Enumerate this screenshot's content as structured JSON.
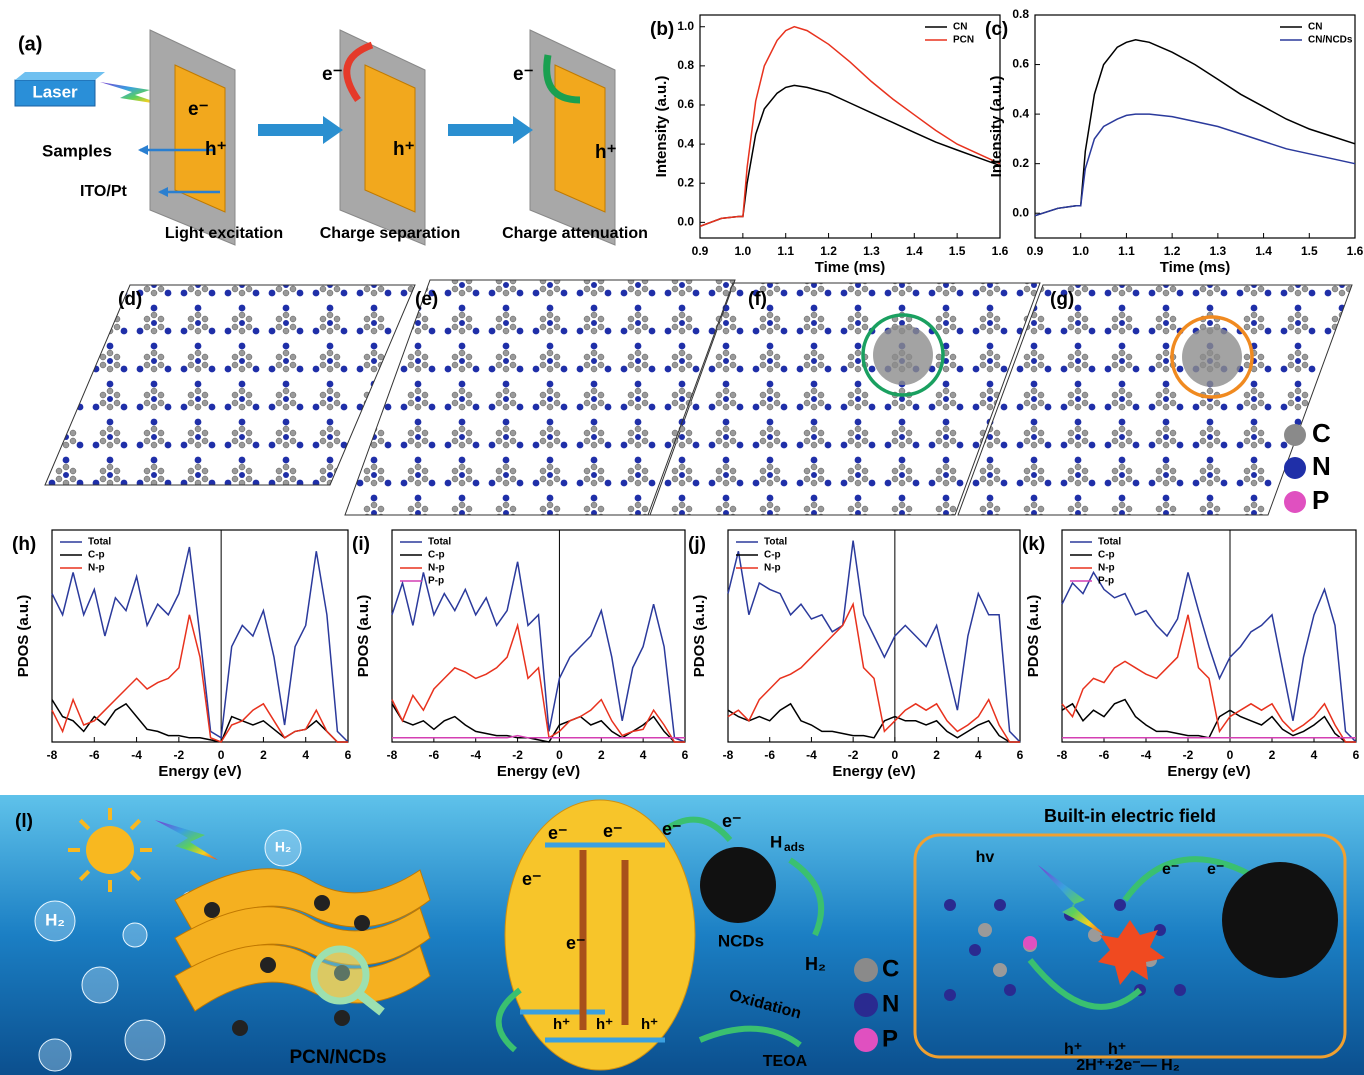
{
  "panel_a": {
    "label": "(a)",
    "laser": "Laser",
    "samples": "Samples",
    "ito": "ITO/Pt",
    "captions": [
      "Light excitation",
      "Charge separation",
      "Charge attenuation"
    ],
    "electrons": [
      "e⁻",
      "e⁻",
      "e⁻"
    ],
    "holes": [
      "h⁺",
      "h⁺",
      "h⁺"
    ]
  },
  "structures": {
    "labels": [
      "(d)",
      "(e)",
      "(f)",
      "(g)"
    ],
    "legend": [
      "C",
      "N",
      "P"
    ]
  },
  "panel_l": {
    "label": "(l)",
    "h2_bubbles": [
      "H₂",
      "H₂"
    ],
    "material": "PCN/NCDs",
    "electrons_top": [
      "e⁻",
      "e⁻",
      "e⁻",
      "e⁻"
    ],
    "electrons_mid": [
      "e⁻",
      "e⁻"
    ],
    "holes": [
      "h⁺",
      "h⁺",
      "h⁺"
    ],
    "ncds": "NCDs",
    "h_ads": "H",
    "h_ads_sub": "ads",
    "h2": "H₂",
    "oxidation": "Oxidation",
    "teoa": "TEOA",
    "legend": [
      "C",
      "N",
      "P"
    ],
    "field_title": "Built-in electric field",
    "hv": "hv",
    "field_electrons": [
      "e⁻",
      "e⁻"
    ],
    "field_holes": [
      "h⁺",
      "h⁺"
    ],
    "reaction": "2H⁺+2e⁻— H₂"
  },
  "chart_data": [
    {
      "type": "line",
      "label": "(b)",
      "xlabel": "Time (ms)",
      "ylabel": "Intensity (a.u.)",
      "legend": "upper right",
      "xlim": [
        0.9,
        1.6
      ],
      "ylim": [
        -0.08,
        1.06
      ],
      "xticks": [
        0.9,
        {
          "value": 1,
          "label": "1.0"
        },
        1.1,
        1.2,
        1.3,
        1.4,
        1.5,
        1.6
      ],
      "yticks": [
        {
          "value": 0,
          "label": "0.0"
        },
        0.2,
        0.4,
        0.6,
        0.8,
        {
          "value": 1,
          "label": "1.0"
        }
      ],
      "x": [
        0.9,
        0.95,
        0.99,
        1.0,
        1.01,
        1.03,
        1.05,
        1.08,
        1.1,
        1.12,
        1.15,
        1.2,
        1.25,
        1.3,
        1.35,
        1.4,
        1.45,
        1.5,
        1.55,
        1.6
      ],
      "series": [
        {
          "name": "CN",
          "color": "#000000",
          "values": [
            -0.02,
            0.02,
            0.03,
            0.03,
            0.2,
            0.45,
            0.58,
            0.66,
            0.69,
            0.7,
            0.69,
            0.66,
            0.61,
            0.56,
            0.51,
            0.46,
            0.41,
            0.37,
            0.33,
            0.29
          ]
        },
        {
          "name": "PCN",
          "color": "#e8321e",
          "values": [
            -0.02,
            0.02,
            0.03,
            0.03,
            0.28,
            0.62,
            0.8,
            0.93,
            0.98,
            1.0,
            0.98,
            0.91,
            0.82,
            0.72,
            0.63,
            0.55,
            0.47,
            0.4,
            0.35,
            0.3
          ]
        }
      ]
    },
    {
      "type": "line",
      "label": "(c)",
      "xlabel": "Time (ms)",
      "ylabel": "Intensity (a.u.)",
      "legend": "upper right",
      "xlim": [
        0.9,
        1.6
      ],
      "ylim": [
        -0.1,
        0.8
      ],
      "xticks": [
        0.9,
        {
          "value": 1,
          "label": "1.0"
        },
        1.1,
        1.2,
        1.3,
        1.4,
        1.5,
        1.6
      ],
      "yticks": [
        {
          "value": 0,
          "label": "0.0"
        },
        0.2,
        0.4,
        0.6,
        0.8
      ],
      "x": [
        0.9,
        0.95,
        0.99,
        1.0,
        1.01,
        1.03,
        1.05,
        1.08,
        1.1,
        1.12,
        1.15,
        1.2,
        1.25,
        1.3,
        1.35,
        1.4,
        1.45,
        1.5,
        1.55,
        1.6
      ],
      "series": [
        {
          "name": "CN",
          "color": "#000000",
          "values": [
            -0.01,
            0.02,
            0.03,
            0.03,
            0.25,
            0.48,
            0.6,
            0.67,
            0.69,
            0.7,
            0.69,
            0.65,
            0.6,
            0.54,
            0.48,
            0.43,
            0.38,
            0.34,
            0.31,
            0.28
          ]
        },
        {
          "name": "CN/NCDs",
          "color": "#2b3a9c",
          "values": [
            -0.01,
            0.02,
            0.03,
            0.03,
            0.18,
            0.3,
            0.35,
            0.38,
            0.395,
            0.4,
            0.4,
            0.39,
            0.37,
            0.35,
            0.32,
            0.29,
            0.26,
            0.24,
            0.22,
            0.2
          ]
        }
      ]
    },
    {
      "type": "line",
      "label": "(h)",
      "xlabel": "Energy (eV)",
      "ylabel": "PDOS (a.u.)",
      "legend": "upper left",
      "xlim": [
        -8,
        6
      ],
      "ylim": [
        0,
        1
      ],
      "xticks": [
        -8,
        -6,
        -4,
        -2,
        0,
        2,
        4,
        6
      ],
      "vline": 0,
      "x": [
        -8,
        -7.5,
        -7,
        -6.5,
        -6,
        -5.5,
        -5,
        -4.5,
        -4,
        -3.5,
        -3,
        -2.5,
        -2,
        -1.5,
        -1,
        -0.5,
        0,
        0.5,
        1,
        1.5,
        2,
        2.5,
        3,
        3.5,
        4,
        4.5,
        5,
        5.5,
        6
      ],
      "series": [
        {
          "name": "Total",
          "color": "#2b3a9c",
          "values": [
            0.7,
            0.6,
            0.8,
            0.6,
            0.72,
            0.5,
            0.68,
            0.62,
            0.78,
            0.55,
            0.65,
            0.6,
            0.7,
            0.92,
            0.5,
            0.05,
            0.02,
            0.45,
            0.55,
            0.5,
            0.62,
            0.4,
            0.08,
            0.45,
            0.55,
            0.9,
            0.6,
            0.05,
            0
          ]
        },
        {
          "name": "C-p",
          "color": "#000000",
          "values": [
            0.2,
            0.12,
            0.1,
            0.05,
            0.12,
            0.08,
            0.15,
            0.18,
            0.12,
            0.06,
            0.05,
            0.03,
            0.03,
            0.02,
            0.02,
            0.01,
            0,
            0.12,
            0.1,
            0.08,
            0.1,
            0.06,
            0.02,
            0.05,
            0.06,
            0.1,
            0.05,
            0,
            0
          ]
        },
        {
          "name": "N-p",
          "color": "#e8321e",
          "values": [
            0.15,
            0.05,
            0.2,
            0.08,
            0.1,
            0.15,
            0.2,
            0.25,
            0.3,
            0.25,
            0.28,
            0.3,
            0.35,
            0.6,
            0.4,
            0.02,
            0,
            0.08,
            0.1,
            0.15,
            0.18,
            0.1,
            0.02,
            0.05,
            0.06,
            0.15,
            0.05,
            0,
            0
          ]
        }
      ]
    },
    {
      "type": "line",
      "label": "(i)",
      "xlabel": "Energy (eV)",
      "ylabel": "PDOS (a.u.)",
      "legend": "upper left",
      "xlim": [
        -8,
        6
      ],
      "ylim": [
        0,
        1
      ],
      "xticks": [
        -8,
        -6,
        -4,
        -2,
        0,
        2,
        4,
        6
      ],
      "vline": 0,
      "x": [
        -8,
        -7.5,
        -7,
        -6.5,
        -6,
        -5.5,
        -5,
        -4.5,
        -4,
        -3.5,
        -3,
        -2.5,
        -2,
        -1.5,
        -1,
        -0.5,
        0,
        0.5,
        1,
        1.5,
        2,
        2.5,
        3,
        3.5,
        4,
        4.5,
        5,
        5.5,
        6
      ],
      "series": [
        {
          "name": "Total",
          "color": "#2b3a9c",
          "values": [
            0.6,
            0.75,
            0.55,
            0.8,
            0.6,
            0.7,
            0.62,
            0.72,
            0.6,
            0.68,
            0.55,
            0.62,
            0.85,
            0.55,
            0.6,
            0.05,
            0.3,
            0.4,
            0.45,
            0.5,
            0.62,
            0.4,
            0.1,
            0.35,
            0.45,
            0.65,
            0.45,
            0.02,
            0
          ]
        },
        {
          "name": "C-p",
          "color": "#000000",
          "values": [
            0.18,
            0.1,
            0.08,
            0.1,
            0.06,
            0.1,
            0.12,
            0.08,
            0.05,
            0.04,
            0.03,
            0.03,
            0.02,
            0.02,
            0.01,
            0,
            0.08,
            0.1,
            0.12,
            0.08,
            0.1,
            0.05,
            0.02,
            0.05,
            0.08,
            0.12,
            0.05,
            0,
            0
          ]
        },
        {
          "name": "N-p",
          "color": "#e8321e",
          "values": [
            0.2,
            0.1,
            0.22,
            0.15,
            0.25,
            0.3,
            0.35,
            0.33,
            0.3,
            0.32,
            0.35,
            0.4,
            0.55,
            0.3,
            0.35,
            0.02,
            0.05,
            0.1,
            0.12,
            0.15,
            0.2,
            0.1,
            0.03,
            0.05,
            0.06,
            0.15,
            0.08,
            0,
            0
          ]
        },
        {
          "name": "P-p",
          "color": "#d43fb3",
          "values": [
            0.02,
            0.02,
            0.02,
            0.02,
            0.02,
            0.02,
            0.02,
            0.02,
            0.02,
            0.02,
            0.02,
            0.02,
            0.03,
            0.02,
            0.02,
            0.02,
            0.02,
            0.02,
            0.02,
            0.02,
            0.02,
            0.02,
            0.02,
            0.02,
            0.02,
            0.02,
            0.02,
            0.02,
            0.02
          ]
        }
      ]
    },
    {
      "type": "line",
      "label": "(j)",
      "xlabel": "Energy (eV)",
      "ylabel": "PDOS (a.u.)",
      "legend": "upper left",
      "xlim": [
        -8,
        6
      ],
      "ylim": [
        0,
        1
      ],
      "xticks": [
        -8,
        -6,
        -4,
        -2,
        0,
        2,
        4,
        6
      ],
      "vline": 0,
      "x": [
        -8,
        -7.5,
        -7,
        -6.5,
        -6,
        -5.5,
        -5,
        -4.5,
        -4,
        -3.5,
        -3,
        -2.5,
        -2,
        -1.5,
        -1,
        -0.5,
        0,
        0.5,
        1,
        1.5,
        2,
        2.5,
        3,
        3.5,
        4,
        4.5,
        5,
        5.5,
        6
      ],
      "series": [
        {
          "name": "Total",
          "color": "#2b3a9c",
          "values": [
            0.7,
            0.9,
            0.6,
            0.75,
            0.72,
            0.7,
            0.6,
            0.65,
            0.58,
            0.6,
            0.52,
            0.55,
            0.95,
            0.6,
            0.5,
            0.4,
            0.5,
            0.55,
            0.5,
            0.45,
            0.55,
            0.35,
            0.15,
            0.5,
            0.7,
            0.6,
            0.6,
            0.05,
            0
          ]
        },
        {
          "name": "C-p",
          "color": "#000000",
          "values": [
            0.15,
            0.12,
            0.1,
            0.12,
            0.1,
            0.15,
            0.18,
            0.1,
            0.08,
            0.05,
            0.05,
            0.04,
            0.03,
            0.03,
            0.02,
            0.1,
            0.12,
            0.1,
            0.1,
            0.08,
            0.1,
            0.05,
            0.02,
            0.05,
            0.08,
            0.1,
            0.03,
            0,
            0
          ]
        },
        {
          "name": "N-p",
          "color": "#e8321e",
          "values": [
            0.12,
            0.15,
            0.1,
            0.2,
            0.25,
            0.3,
            0.32,
            0.35,
            0.4,
            0.45,
            0.5,
            0.55,
            0.65,
            0.35,
            0.3,
            0.05,
            0.1,
            0.15,
            0.18,
            0.15,
            0.18,
            0.1,
            0.05,
            0.08,
            0.12,
            0.2,
            0.08,
            0,
            0
          ]
        }
      ]
    },
    {
      "type": "line",
      "label": "(k)",
      "xlabel": "Energy (eV)",
      "ylabel": "PDOS (a.u.)",
      "legend": "upper left",
      "xlim": [
        -8,
        6
      ],
      "ylim": [
        0,
        1
      ],
      "xticks": [
        -8,
        -6,
        -4,
        -2,
        0,
        2,
        4,
        6
      ],
      "vline": 0,
      "x": [
        -8,
        -7.5,
        -7,
        -6.5,
        -6,
        -5.5,
        -5,
        -4.5,
        -4,
        -3.5,
        -3,
        -2.5,
        -2,
        -1.5,
        -1,
        -0.5,
        0,
        0.5,
        1,
        1.5,
        2,
        2.5,
        3,
        3.5,
        4,
        4.5,
        5,
        5.5,
        6
      ],
      "series": [
        {
          "name": "Total",
          "color": "#2b3a9c",
          "values": [
            0.65,
            0.75,
            0.7,
            0.8,
            0.72,
            0.68,
            0.7,
            0.6,
            0.62,
            0.55,
            0.5,
            0.58,
            0.8,
            0.62,
            0.45,
            0.3,
            0.4,
            0.45,
            0.52,
            0.55,
            0.6,
            0.35,
            0.1,
            0.4,
            0.6,
            0.72,
            0.55,
            0.05,
            0
          ]
        },
        {
          "name": "C-p",
          "color": "#000000",
          "values": [
            0.15,
            0.18,
            0.1,
            0.15,
            0.12,
            0.18,
            0.2,
            0.12,
            0.08,
            0.05,
            0.05,
            0.04,
            0.03,
            0.03,
            0.02,
            0.12,
            0.15,
            0.12,
            0.1,
            0.08,
            0.12,
            0.06,
            0.03,
            0.05,
            0.08,
            0.12,
            0.04,
            0,
            0
          ]
        },
        {
          "name": "N-p",
          "color": "#e8321e",
          "values": [
            0.18,
            0.12,
            0.25,
            0.3,
            0.28,
            0.35,
            0.38,
            0.35,
            0.32,
            0.3,
            0.35,
            0.4,
            0.6,
            0.35,
            0.3,
            0.05,
            0.12,
            0.15,
            0.18,
            0.15,
            0.18,
            0.1,
            0.05,
            0.08,
            0.12,
            0.18,
            0.08,
            0,
            0
          ]
        },
        {
          "name": "P-p",
          "color": "#d43fb3",
          "values": [
            0.02,
            0.02,
            0.02,
            0.02,
            0.02,
            0.02,
            0.02,
            0.02,
            0.02,
            0.02,
            0.02,
            0.02,
            0.02,
            0.02,
            0.02,
            0.02,
            0.02,
            0.02,
            0.02,
            0.02,
            0.02,
            0.02,
            0.02,
            0.02,
            0.02,
            0.02,
            0.02,
            0.02,
            0.02
          ]
        }
      ]
    }
  ]
}
